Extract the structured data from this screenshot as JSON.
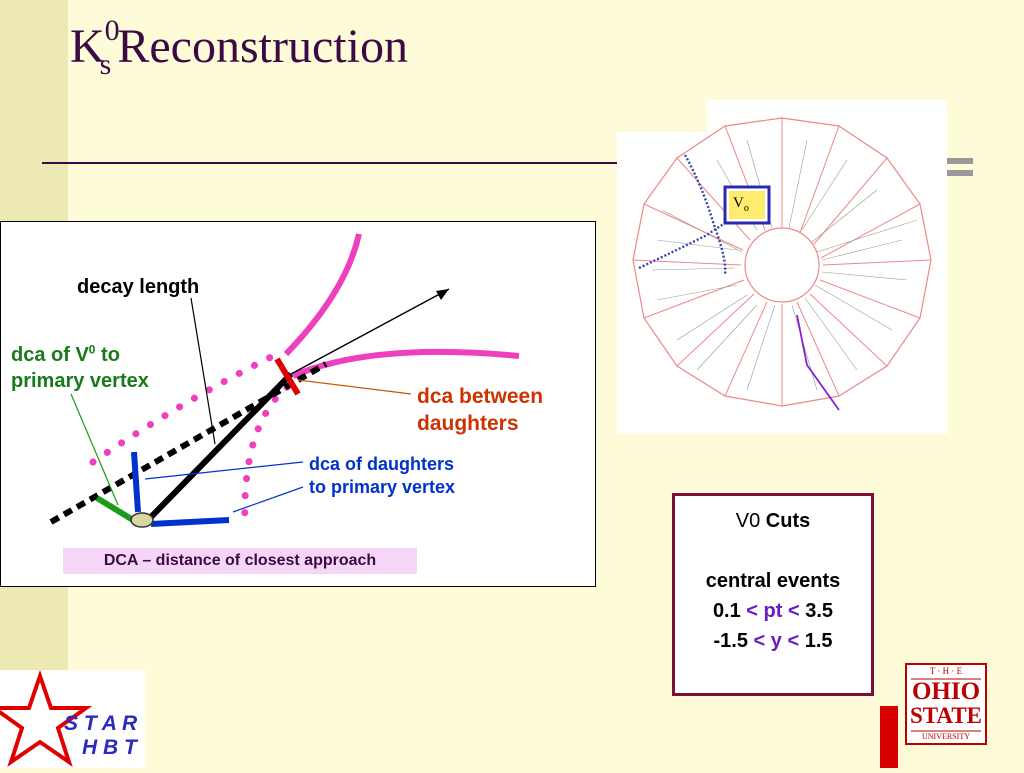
{
  "title": {
    "main": "K",
    "sup": "0",
    "sub": "s",
    "rest": "Reconstruction"
  },
  "diagram": {
    "label_decay_length": "decay length",
    "label_dca_v0_line1": "dca of V",
    "label_dca_v0_sup": "0",
    "label_dca_v0_line1_end": " to",
    "label_dca_v0_line2": "primary vertex",
    "label_dca_between_line1": "dca between",
    "label_dca_between_line2": "daughters",
    "label_dca_daughters_line1": "dca  of  daughters",
    "label_dca_daughters_line2": "to primary vertex",
    "caption": "DCA – distance of closest approach"
  },
  "event_display": {
    "v0_label": "V",
    "v0_sub": "o"
  },
  "cuts": {
    "heading_prefix": "V0 ",
    "heading_bold": "Cuts",
    "central": "central events",
    "pt_low": "0.1 ",
    "pt_op1": "< ",
    "pt_var": "pt",
    "pt_op2": " <",
    "pt_high": " 3.5",
    "y_low": "-1.5 ",
    "y_op1": "<  ",
    "y_var": "y",
    "y_op2": " <",
    "y_high": " 1.5"
  },
  "logos": {
    "star_line1": "S T A R",
    "star_line2": "H B T",
    "osu_top": "T · H · E",
    "osu_ohio": "OHIO",
    "osu_state": "STATE",
    "osu_univ": "UNIVERSITY"
  },
  "colors": {
    "title": "#3b0a45",
    "magenta": "#ee3fbf",
    "blue": "#0033cc",
    "green": "#1a9c1a",
    "red": "#e00000",
    "orange": "#cc5500",
    "cuts_border": "#7a1036"
  }
}
